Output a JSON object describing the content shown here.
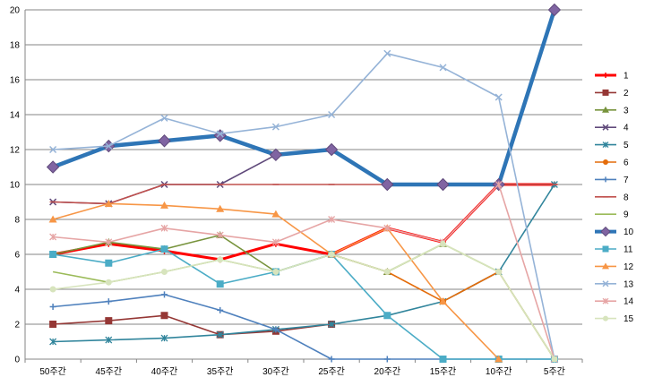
{
  "chart_data": {
    "type": "line",
    "categories": [
      "50주간",
      "45주간",
      "40주간",
      "35주간",
      "30주간",
      "25주간",
      "20주간",
      "15주간",
      "10주간",
      "5주간"
    ],
    "ylim": [
      0,
      20
    ],
    "yticks": [
      0,
      2,
      4,
      6,
      8,
      10,
      12,
      14,
      16,
      18,
      20
    ],
    "grid": "horizontal",
    "legend": "right",
    "series": [
      {
        "name": "1",
        "color": "#ff0000",
        "marker": "plus",
        "values": [
          6,
          6.6,
          6.2,
          5.7,
          6.6,
          6,
          7.5,
          6.7,
          10,
          10
        ]
      },
      {
        "name": "2",
        "color": "#953735",
        "marker": "square",
        "values": [
          2,
          2.2,
          2.5,
          1.4,
          1.6,
          2,
          null,
          null,
          null,
          null
        ]
      },
      {
        "name": "3",
        "color": "#77933c",
        "marker": "triangle",
        "values": [
          6,
          6.7,
          6.3,
          7.1,
          5,
          6,
          5,
          6.6,
          null,
          null
        ]
      },
      {
        "name": "4",
        "color": "#604a7b",
        "marker": "x",
        "values": [
          9,
          8.9,
          10,
          10,
          11.7,
          12,
          null,
          null,
          null,
          null
        ]
      },
      {
        "name": "5",
        "color": "#31859c",
        "marker": "star",
        "values": [
          1,
          1.1,
          1.2,
          1.4,
          1.7,
          2,
          2.5,
          3.3,
          5,
          10
        ]
      },
      {
        "name": "6",
        "color": "#e46c0a",
        "marker": "circle",
        "values": [
          null,
          null,
          null,
          null,
          null,
          6,
          5,
          3.3,
          5,
          0
        ]
      },
      {
        "name": "7",
        "color": "#4f81bd",
        "marker": "plus",
        "values": [
          3,
          3.3,
          3.7,
          2.8,
          1.7,
          0,
          0,
          0,
          0,
          0
        ]
      },
      {
        "name": "8",
        "color": "#c0504d",
        "marker": "dash",
        "values": [
          9,
          8.9,
          10,
          10,
          10,
          10,
          10,
          10,
          10,
          10
        ]
      },
      {
        "name": "9",
        "color": "#9bbb59",
        "marker": "none",
        "values": [
          5,
          4.4,
          5,
          5.7,
          5,
          6,
          5,
          6.6,
          5,
          0
        ]
      },
      {
        "name": "10",
        "color": "#2e75b6",
        "marker": "diamond",
        "values": [
          11,
          12.2,
          12.5,
          12.8,
          11.7,
          12,
          10,
          10,
          10,
          20
        ]
      },
      {
        "name": "11",
        "color": "#4bacc6",
        "marker": "square",
        "values": [
          6,
          5.5,
          6.3,
          4.3,
          5,
          6,
          2.5,
          0,
          0,
          0
        ]
      },
      {
        "name": "12",
        "color": "#f79646",
        "marker": "triangle",
        "values": [
          8,
          8.9,
          8.8,
          8.6,
          8.3,
          6,
          7.5,
          3.3,
          0,
          null
        ]
      },
      {
        "name": "13",
        "color": "#95b3d7",
        "marker": "x",
        "values": [
          12,
          12.2,
          13.8,
          12.9,
          13.3,
          14,
          17.5,
          16.7,
          15,
          0
        ]
      },
      {
        "name": "14",
        "color": "#e6a5a5",
        "marker": "star",
        "values": [
          7,
          6.7,
          7.5,
          7.1,
          6.7,
          8,
          7.5,
          6.7,
          10,
          0
        ]
      },
      {
        "name": "15",
        "color": "#d7e4bd",
        "marker": "circle",
        "values": [
          4,
          4.4,
          5,
          5.7,
          5,
          6,
          5,
          6.6,
          5,
          0
        ]
      }
    ]
  }
}
